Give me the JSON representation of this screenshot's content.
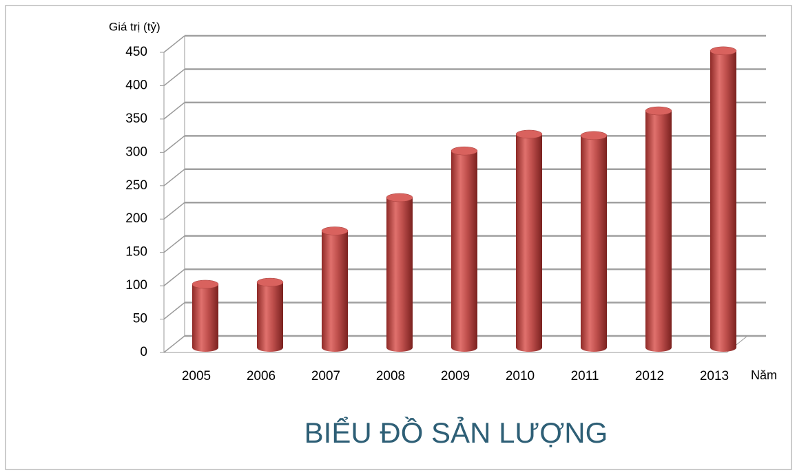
{
  "chart_data": {
    "type": "bar",
    "title": "BIỂU ĐỒ SẢN LƯỢNG",
    "y_axis_label": "Giá trị (tỷ)",
    "x_axis_label": "Năm",
    "categories": [
      "2005",
      "2006",
      "2007",
      "2008",
      "2009",
      "2010",
      "2011",
      "2012",
      "2013"
    ],
    "values": [
      95,
      98,
      175,
      225,
      295,
      320,
      318,
      355,
      445
    ],
    "color": "#c0504d",
    "ylim": [
      0,
      450
    ],
    "yticks": [
      0,
      50,
      100,
      150,
      200,
      250,
      300,
      350,
      400,
      450
    ],
    "grid": true
  }
}
